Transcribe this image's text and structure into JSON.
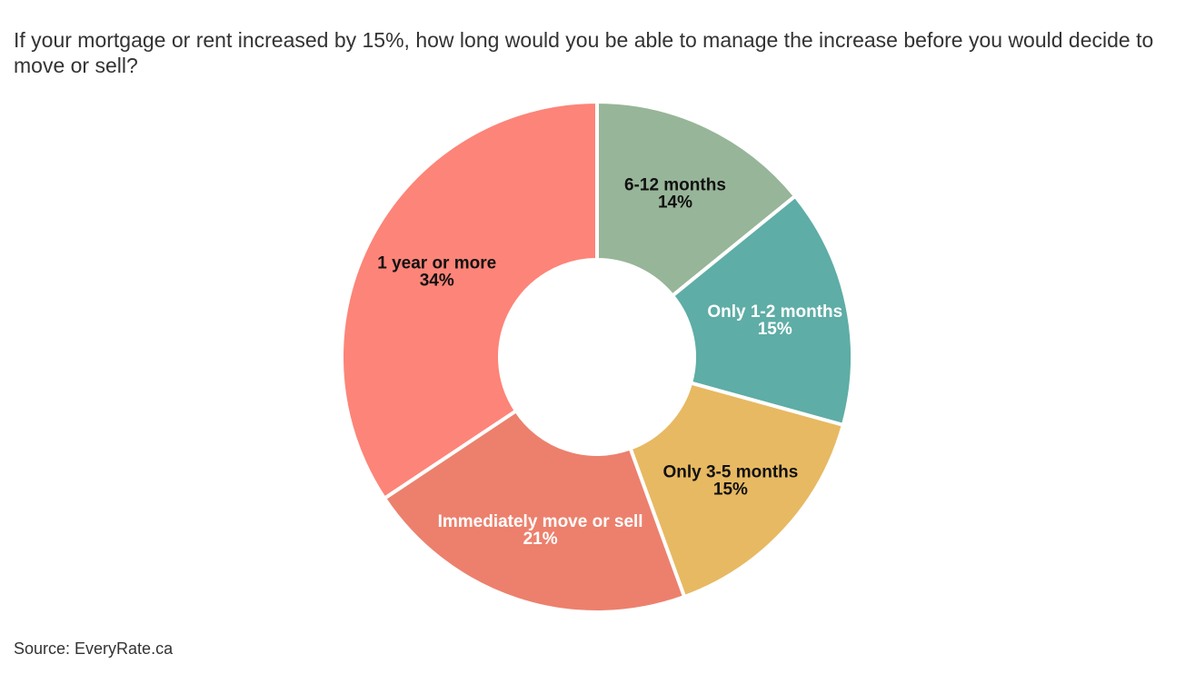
{
  "page": {
    "title": "If your mortgage or rent increased by 15%, how long would you be able to manage the increase before you would decide to move or sell?",
    "source": "Source: EveryRate.ca"
  },
  "chart_data": {
    "type": "pie",
    "variant": "donut",
    "title": "If your mortgage or rent increased by 15%, how long would you be able to manage the increase before you would decide to move or sell?",
    "unit": "%",
    "slices": [
      {
        "label": "6-12 months",
        "value": 14,
        "value_label": "14%",
        "color": "#97b598",
        "label_color": "#111111"
      },
      {
        "label": "Only 1-2 months",
        "value": 15,
        "value_label": "15%",
        "color": "#5eada6",
        "label_color": "#ffffff"
      },
      {
        "label": "Only 3-5 months",
        "value": 15,
        "value_label": "15%",
        "color": "#e7b962",
        "label_color": "#111111"
      },
      {
        "label": "Immediately move or sell",
        "value": 21,
        "value_label": "21%",
        "color": "#ec806d",
        "label_color": "#ffffff"
      },
      {
        "label": "1 year or more",
        "value": 34,
        "value_label": "34%",
        "color": "#fd8478",
        "label_color": "#111111"
      }
    ]
  }
}
